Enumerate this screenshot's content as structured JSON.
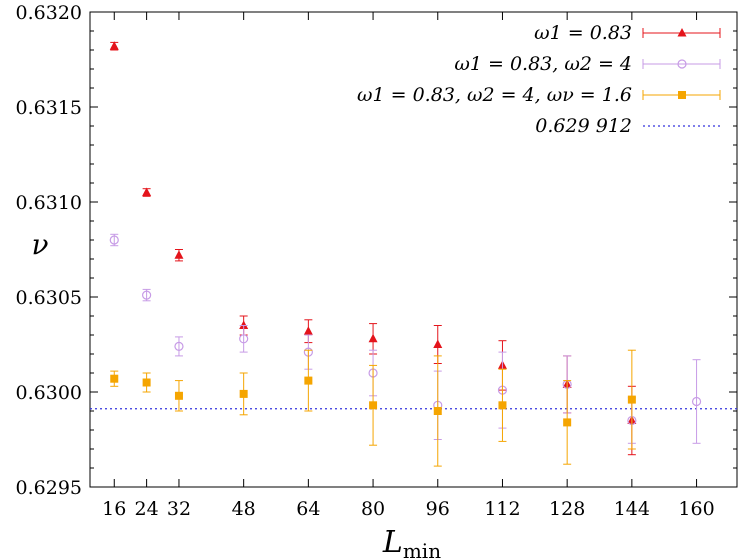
{
  "chart_data": {
    "type": "scatter",
    "xlabel": "L_min",
    "xlabel_main": "L",
    "xlabel_sub": "min",
    "ylabel": "ν",
    "xlim": [
      10,
      170
    ],
    "ylim": [
      0.6295,
      0.632
    ],
    "x_ticks": [
      16,
      24,
      32,
      48,
      64,
      80,
      96,
      112,
      128,
      144,
      160
    ],
    "x_tick_labels": [
      "16",
      "24",
      "32",
      "48",
      "64",
      "80",
      "96",
      "112",
      "128",
      "144",
      "160"
    ],
    "y_ticks": [
      0.6295,
      0.63,
      0.6305,
      0.631,
      0.6315,
      0.632
    ],
    "y_tick_labels": [
      "0.6295",
      "0.6300",
      "0.6305",
      "0.6310",
      "0.6315",
      "0.6320"
    ],
    "grid": false,
    "legend_position": "top-right",
    "series": [
      {
        "name": "ω1 = 0.83",
        "color": "#e4141b",
        "marker": "triangle",
        "points": [
          {
            "x": 16,
            "y": 0.63182,
            "err": 2e-05
          },
          {
            "x": 24,
            "y": 0.63105,
            "err": 2e-05
          },
          {
            "x": 32,
            "y": 0.63072,
            "err": 3e-05
          },
          {
            "x": 48,
            "y": 0.63035,
            "err": 5e-05
          },
          {
            "x": 64,
            "y": 0.63032,
            "err": 6e-05
          },
          {
            "x": 80,
            "y": 0.63028,
            "err": 8e-05
          },
          {
            "x": 96,
            "y": 0.63025,
            "err": 0.0001
          },
          {
            "x": 112,
            "y": 0.63014,
            "err": 0.00013
          },
          {
            "x": 128,
            "y": 0.63004,
            "err": 0.00015
          },
          {
            "x": 144,
            "y": 0.62985,
            "err": 0.00018
          }
        ]
      },
      {
        "name": "ω1 = 0.83, ω2 = 4",
        "color": "#c79be6",
        "marker": "circle",
        "points": [
          {
            "x": 16,
            "y": 0.6308,
            "err": 3e-05
          },
          {
            "x": 24,
            "y": 0.63051,
            "err": 3e-05
          },
          {
            "x": 32,
            "y": 0.63024,
            "err": 5e-05
          },
          {
            "x": 48,
            "y": 0.63028,
            "err": 7e-05
          },
          {
            "x": 64,
            "y": 0.63021,
            "err": 9e-05
          },
          {
            "x": 80,
            "y": 0.6301,
            "err": 0.00012
          },
          {
            "x": 96,
            "y": 0.62993,
            "err": 0.00018
          },
          {
            "x": 112,
            "y": 0.63001,
            "err": 0.0002
          },
          {
            "x": 128,
            "y": 0.63004,
            "err": 0.00015
          },
          {
            "x": 144,
            "y": 0.62985,
            "err": 0.00012
          },
          {
            "x": 160,
            "y": 0.62995,
            "err": 0.00022
          }
        ]
      },
      {
        "name": "ω1 = 0.83, ω2 = 4, ων = 1.6",
        "color": "#f5a500",
        "marker": "square",
        "points": [
          {
            "x": 16,
            "y": 0.63007,
            "err": 4e-05
          },
          {
            "x": 24,
            "y": 0.63005,
            "err": 5e-05
          },
          {
            "x": 32,
            "y": 0.62998,
            "err": 8e-05
          },
          {
            "x": 48,
            "y": 0.62999,
            "err": 0.00011
          },
          {
            "x": 64,
            "y": 0.63006,
            "err": 0.00016
          },
          {
            "x": 80,
            "y": 0.62993,
            "err": 0.00021
          },
          {
            "x": 96,
            "y": 0.6299,
            "err": 0.00029
          },
          {
            "x": 112,
            "y": 0.62993,
            "err": 0.00019
          },
          {
            "x": 128,
            "y": 0.62984,
            "err": 0.00022
          },
          {
            "x": 144,
            "y": 0.62996,
            "err": 0.00026
          }
        ]
      }
    ],
    "reference_line": {
      "name": "0.629 912",
      "value": 0.629912,
      "color": "#3333dd",
      "style": "dotted"
    }
  }
}
